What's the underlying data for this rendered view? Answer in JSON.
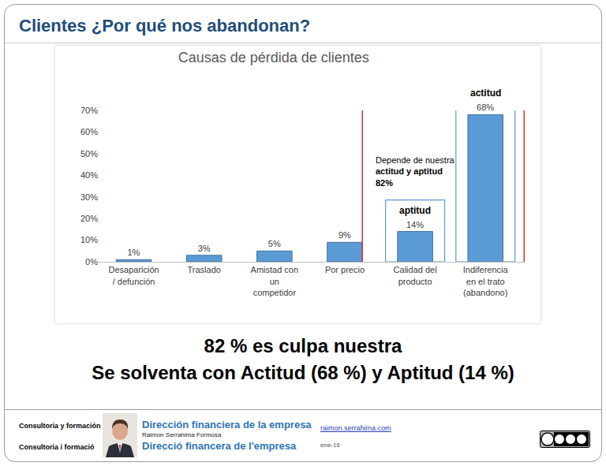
{
  "header": {
    "title": "Clientes ¿Por qué nos abandonan?"
  },
  "chart_data": {
    "type": "bar",
    "title": "Causas de pérdida de clientes",
    "categories": [
      "Desaparición / defunción",
      "Traslado",
      "Amistad con un competidor",
      "Por precio",
      "Calidad del producto",
      "Indiferencia en el trato (abandono)"
    ],
    "values": [
      1,
      3,
      5,
      9,
      14,
      68
    ],
    "value_labels": [
      "1%",
      "3%",
      "5%",
      "9%",
      "14%",
      "68%"
    ],
    "color": "#5b9bd5",
    "ylim": [
      0,
      70
    ],
    "yticks": [
      {
        "value": 0,
        "label": "0%"
      },
      {
        "value": 10,
        "label": "10%"
      },
      {
        "value": 20,
        "label": "20%"
      },
      {
        "value": 30,
        "label": "30%"
      },
      {
        "value": 40,
        "label": "40%"
      },
      {
        "value": 50,
        "label": "50%"
      },
      {
        "value": 60,
        "label": "60%"
      },
      {
        "value": 70,
        "label": "70%"
      }
    ],
    "grid": false,
    "data_labels": true,
    "annotations": [
      {
        "text": "aptitud",
        "category": "Calidad del producto"
      },
      {
        "text": "actitud",
        "category": "Indiferencia en el trato (abandono)"
      },
      {
        "lines": [
          "Depende de nuestra",
          "actitud y aptitud",
          "82%"
        ],
        "category": "Calidad del producto"
      }
    ]
  },
  "conclusion": [
    "82 % es culpa nuestra",
    "Se solventa con Actitud (68 %) y Aptitud (14 %)"
  ],
  "footer": {
    "left": [
      "Consultoria y formación",
      "Consultoria i formació"
    ],
    "brand": [
      "Dirección financiera de la empresa",
      "Raimon Serrahima Formosa",
      "Direcció financera de l'empresa"
    ],
    "url": "raimon.serrahima.com",
    "date": "ene-16"
  }
}
